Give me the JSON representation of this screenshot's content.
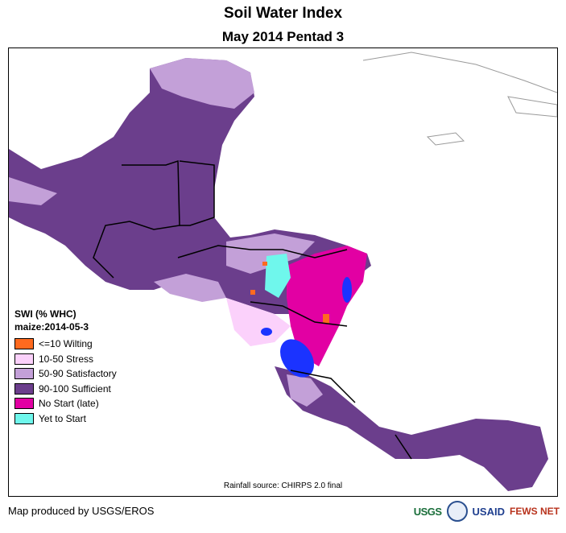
{
  "header": {
    "title": "Soil Water Index",
    "subtitle": "May 2014 Pentad 3"
  },
  "legend": {
    "title": "SWI (% WHC)",
    "subtitle": "maize:2014-05-3",
    "items": [
      {
        "label": "<=10 Wilting",
        "color": "#ff6a1f"
      },
      {
        "label": "10-50 Stress",
        "color": "#fbd1fb"
      },
      {
        "label": "50-90 Satisfactory",
        "color": "#c3a0d8"
      },
      {
        "label": "90-100 Sufficient",
        "color": "#6b3e8c"
      },
      {
        "label": "No Start (late)",
        "color": "#e200a3"
      },
      {
        "label": "Yet to Start",
        "color": "#6ff7ec"
      }
    ]
  },
  "map": {
    "rainfall_source": "Rainfall source: CHIRPS 2.0 final",
    "water_color": "#1b33ff"
  },
  "footer": {
    "credit": "Map produced by USGS/EROS",
    "logos": [
      "USGS",
      "USAID",
      "FEWS NET"
    ]
  }
}
